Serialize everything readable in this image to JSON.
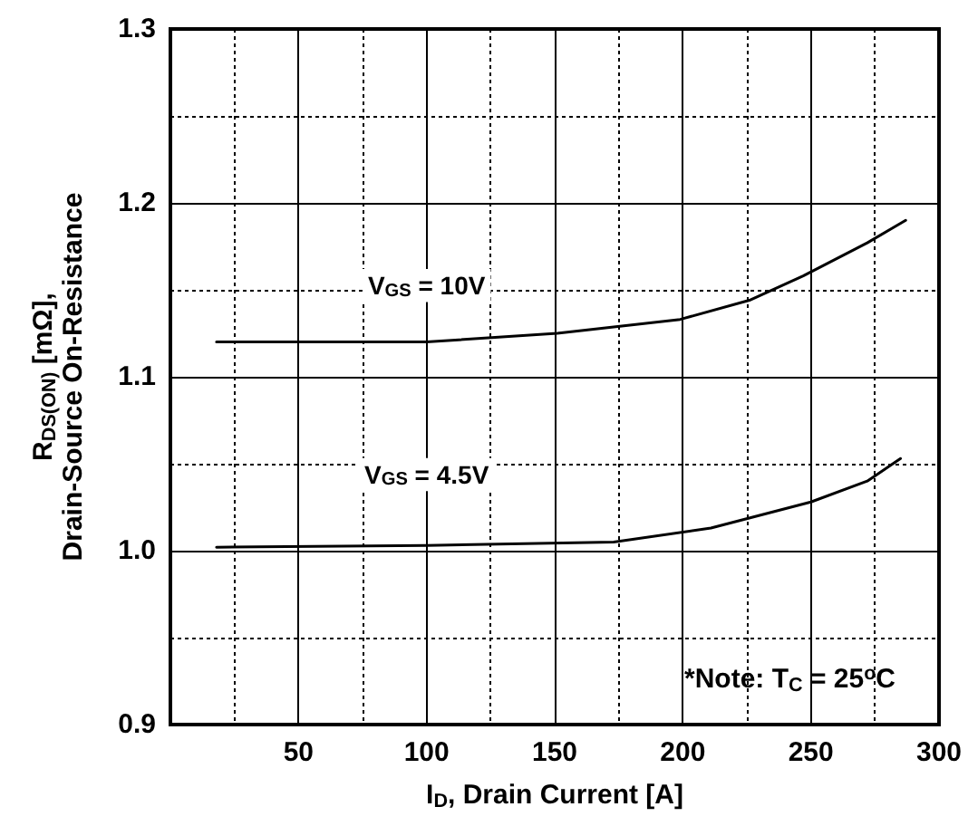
{
  "chart_data": {
    "type": "line",
    "xlabel": "I$_{D}$, Drain Current [A]",
    "ylabel": "R$_{DS(ON)}$ [mΩ],\nDrain-Source On-Resistance",
    "xlim": [
      0,
      300
    ],
    "xticks": [
      {
        "value": 0,
        "label": null
      },
      50,
      100,
      150,
      200,
      250,
      300
    ],
    "ylim": [
      0.9,
      1.3
    ],
    "yticks": [
      0.9,
      {
        "value": 1.0,
        "label": "1.0"
      },
      1.1,
      1.2,
      1.3
    ],
    "grid": true,
    "legend": false,
    "marker": "none",
    "line_style": "solid",
    "annotations": [
      "*Note: T$_{C}$ = 25$^{o}$C"
    ],
    "series": [
      {
        "name": "V$_{GS}$ = 10V",
        "color": "#000000",
        "x": [
          18,
          50,
          100,
          151,
          199,
          226,
          247,
          272,
          287
        ],
        "values": [
          1.12,
          1.12,
          1.12,
          1.125,
          1.133,
          1.144,
          1.158,
          1.177,
          1.19
        ]
      },
      {
        "name": "V$_{GS}$ = 4.5V",
        "color": "#000000",
        "x": [
          18,
          100,
          173,
          211,
          250,
          272,
          285
        ],
        "values": [
          1.002,
          1.003,
          1.005,
          1.013,
          1.028,
          1.04,
          1.053
        ]
      }
    ]
  }
}
